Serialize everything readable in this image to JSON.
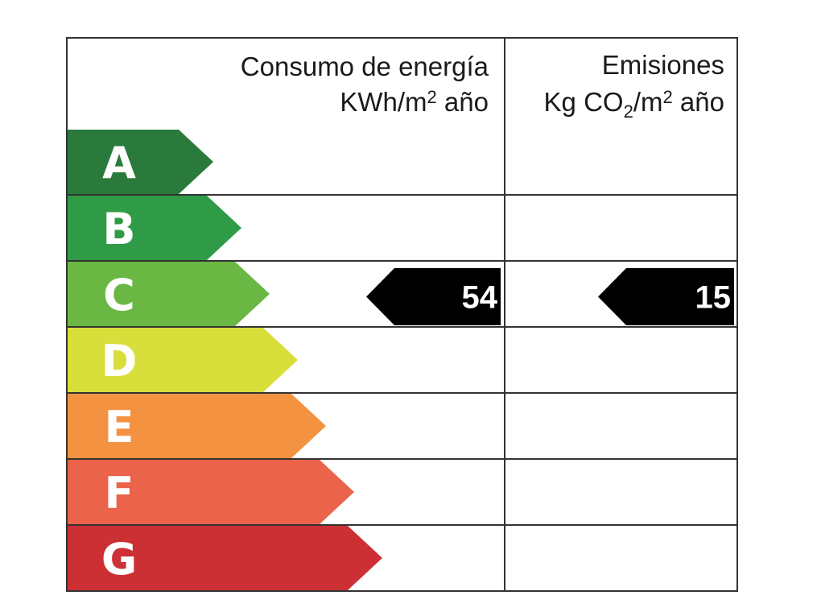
{
  "header": {
    "energy": {
      "line1": "Consumo de energía",
      "line2": [
        "KWh/m",
        "2",
        " año"
      ]
    },
    "emissions": {
      "line1": "Emisiones",
      "line2": [
        "Kg CO",
        "2",
        "/m",
        "2",
        " año"
      ]
    }
  },
  "rows": [
    {
      "grade": "A",
      "color": "#2a7a3c",
      "energy": null,
      "emissions": null
    },
    {
      "grade": "B",
      "color": "#2f9b47",
      "energy": null,
      "emissions": null
    },
    {
      "grade": "C",
      "color": "#6ab843",
      "energy": 54,
      "emissions": 15
    },
    {
      "grade": "D",
      "color": "#d9df3a",
      "energy": null,
      "emissions": null
    },
    {
      "grade": "E",
      "color": "#f39341",
      "energy": null,
      "emissions": null
    },
    {
      "grade": "F",
      "color": "#ea634a",
      "energy": null,
      "emissions": null
    },
    {
      "grade": "G",
      "color": "#cc3035",
      "energy": null,
      "emissions": null
    }
  ]
}
